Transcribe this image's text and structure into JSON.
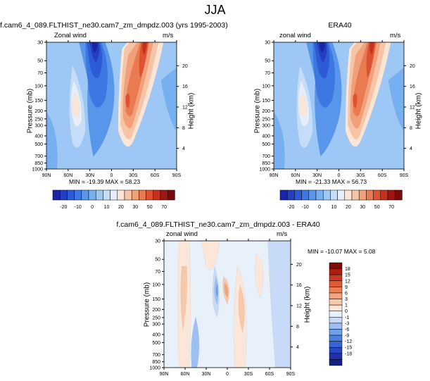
{
  "title": "JJA",
  "colors": {
    "scale_a": [
      "#1a24a8",
      "#233ec2",
      "#2d5ad6",
      "#3c78e2",
      "#5796ea",
      "#77b0f1",
      "#9dc8f6",
      "#c4ddf9",
      "#e6eff9",
      "#fbe5d6",
      "#f7c4a6",
      "#f2a07a",
      "#ea7a50",
      "#de5232",
      "#c6301f",
      "#a01612",
      "#7a0a0a"
    ],
    "scale_b": [
      "#16207e",
      "#1f31a5",
      "#2947c0",
      "#3763d3",
      "#4a80e0",
      "#6ea0ea",
      "#9dbff3",
      "#c7daf8",
      "#e8f0fa",
      "#fbe6d8",
      "#f7c8aa",
      "#f3a47f",
      "#ec7e54",
      "#e05a36",
      "#c93a22",
      "#a81e12",
      "#7e0b08"
    ]
  },
  "chart_data": [
    {
      "type": "heatmap",
      "title": "f.cam6_4_089.FLTHIST_ne30.cam7_zm_dmpdz.003 (yrs 1995-2003)",
      "left_label": "Zonal wind",
      "right_label": "m/s",
      "stats": "MIN = -19.39   MAX =  58.23",
      "x_ticks": [
        "90N",
        "60N",
        "30N",
        "0",
        "30S",
        "60S",
        "90S"
      ],
      "y_ticks": [
        "30",
        "50",
        "70",
        "100",
        "150",
        "200",
        "250",
        "300",
        "400",
        "500",
        "700",
        "850",
        "1000"
      ],
      "y2_ticks": [
        "20",
        "16",
        "12",
        "8",
        "4"
      ],
      "ylabel": "Pressure (mb)",
      "y2label": "Height (km)",
      "colorbar_labels": [
        "-20",
        "-10",
        "0",
        "10",
        "20",
        "30",
        "50",
        "70"
      ],
      "features": [
        {
          "lat": 45,
          "p": 200,
          "value": 25
        },
        {
          "lat": 15,
          "p": 30,
          "value": -19.39
        },
        {
          "lat": -42,
          "p": 30,
          "value": 58.23
        },
        {
          "lat": -30,
          "p": 200,
          "value": 35
        }
      ]
    },
    {
      "type": "heatmap",
      "title": "ERA40",
      "left_label": "zonal wind",
      "right_label": "m/s",
      "stats": "MIN = -21.33   MAX =  56.73",
      "x_ticks": [
        "90N",
        "60N",
        "30N",
        "0",
        "30S",
        "60S",
        "90S"
      ],
      "y_ticks": [
        "30",
        "50",
        "70",
        "100",
        "150",
        "200",
        "250",
        "300",
        "400",
        "500",
        "700",
        "850",
        "1000"
      ],
      "y2_ticks": [
        "20",
        "16",
        "12",
        "8",
        "4"
      ],
      "ylabel": "Pressure (mb)",
      "y2label": "Height (km)",
      "colorbar_labels": [
        "-20",
        "-10",
        "0",
        "10",
        "20",
        "30",
        "50",
        "70"
      ],
      "features": [
        {
          "lat": 45,
          "p": 200,
          "value": 25
        },
        {
          "lat": 15,
          "p": 30,
          "value": -21.33
        },
        {
          "lat": -45,
          "p": 30,
          "value": 56.73
        },
        {
          "lat": -30,
          "p": 200,
          "value": 35
        }
      ]
    },
    {
      "type": "heatmap",
      "title": "f.cam6_4_089.FLTHIST_ne30.cam7_zm_dmpdz.003 - ERA40",
      "left_label": "zonal wind",
      "right_label": "m/s",
      "stats": "MIN = -10.07   MAX =   5.08",
      "x_ticks": [
        "90N",
        "60N",
        "30N",
        "0",
        "30S",
        "60S",
        "90S"
      ],
      "y_ticks": [
        "30",
        "50",
        "70",
        "100",
        "150",
        "200",
        "250",
        "300",
        "400",
        "500",
        "700",
        "850",
        "1000"
      ],
      "y2_ticks": [
        "20",
        "16",
        "12",
        "8",
        "4"
      ],
      "ylabel": "Pressure (mb)",
      "y2label": "Height (km)",
      "colorbar_labels": [
        "18",
        "15",
        "12",
        "9",
        "6",
        "3",
        "1",
        "0",
        "-1",
        "-3",
        "-6",
        "-9",
        "-12",
        "-15",
        "-18"
      ],
      "features": [
        {
          "lat": 65,
          "p": 100,
          "value": 4
        },
        {
          "lat": 15,
          "p": 70,
          "value": -8
        },
        {
          "lat": 0,
          "p": 100,
          "value": 5.08
        },
        {
          "lat": -40,
          "p": 100,
          "value": 4
        }
      ]
    }
  ]
}
